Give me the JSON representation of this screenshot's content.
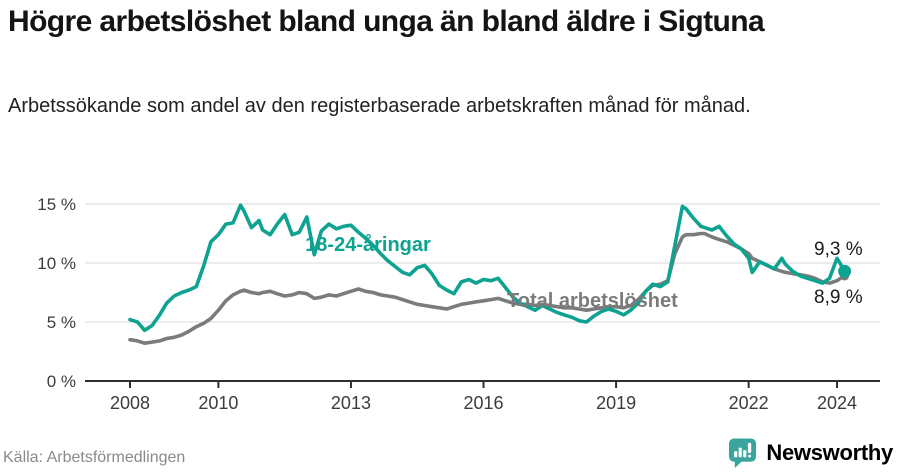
{
  "header": {
    "title": "Högre arbetslöshet bland unga än bland äldre i Sigtuna",
    "subtitle": "Arbetssökande som andel av den registerbaserade arbetskraften månad för månad."
  },
  "chart_data": {
    "type": "line",
    "title": "Högre arbetslöshet bland unga än bland äldre i Sigtuna",
    "subtitle": "Arbetssökande som andel av den registerbaserade arbetskraften månad för månad.",
    "grid": "horizontal",
    "grid_color": "#d9d9d9",
    "axis_color": "#2e2e2e",
    "tick_label_color": "#3c3c3c",
    "end_label_color": "#1a1a1a",
    "legend_position": "inline-labels",
    "xlim": [
      2006.98,
      2025.05
    ],
    "ylim": [
      0,
      16.6
    ],
    "y_ticks": [
      {
        "value": 0,
        "label": "0 %"
      },
      {
        "value": 5,
        "label": "5 %"
      },
      {
        "value": 10,
        "label": "10 %"
      },
      {
        "value": 15,
        "label": "15 %"
      }
    ],
    "x_ticks": [
      {
        "value": 2008,
        "label": "2008"
      },
      {
        "value": 2010,
        "label": "2010"
      },
      {
        "value": 2013,
        "label": "2013"
      },
      {
        "value": 2016,
        "label": "2016"
      },
      {
        "value": 2019,
        "label": "2019"
      },
      {
        "value": 2022,
        "label": "2022"
      },
      {
        "value": 2024,
        "label": "2024"
      }
    ],
    "x": [
      2008,
      2008.17,
      2008.33,
      2008.5,
      2008.67,
      2008.83,
      2009,
      2009.17,
      2009.33,
      2009.5,
      2009.67,
      2009.83,
      2010,
      2010.17,
      2010.33,
      2010.5,
      2010.58,
      2010.75,
      2010.92,
      2011,
      2011.17,
      2011.33,
      2011.5,
      2011.67,
      2011.83,
      2012,
      2012.17,
      2012.33,
      2012.5,
      2012.67,
      2012.83,
      2013,
      2013.17,
      2013.33,
      2013.5,
      2013.67,
      2013.83,
      2014,
      2014.17,
      2014.33,
      2014.5,
      2014.67,
      2014.83,
      2015,
      2015.17,
      2015.33,
      2015.5,
      2015.67,
      2015.83,
      2016,
      2016.17,
      2016.33,
      2016.5,
      2016.67,
      2016.83,
      2017,
      2017.17,
      2017.33,
      2017.5,
      2017.67,
      2017.83,
      2018,
      2018.17,
      2018.33,
      2018.5,
      2018.67,
      2018.83,
      2019,
      2019.17,
      2019.33,
      2019.5,
      2019.67,
      2019.83,
      2020,
      2020.17,
      2020.33,
      2020.5,
      2020.58,
      2020.75,
      2020.92,
      2021,
      2021.17,
      2021.33,
      2021.5,
      2021.67,
      2021.83,
      2022,
      2022.08,
      2022.25,
      2022.42,
      2022.58,
      2022.75,
      2022.83,
      2023,
      2023.17,
      2023.33,
      2023.5,
      2023.67,
      2023.83,
      2024,
      2024.08,
      2024.17
    ],
    "series": [
      {
        "name": "18-24-åringar",
        "color": "#0ea291",
        "end_label": "9,3 %",
        "end_value": 9.3,
        "values": [
          5.2,
          5.0,
          4.3,
          4.7,
          5.6,
          6.6,
          7.2,
          7.5,
          7.7,
          8.0,
          9.8,
          11.8,
          12.4,
          13.3,
          13.4,
          14.9,
          14.4,
          13.0,
          13.6,
          12.8,
          12.4,
          13.3,
          14.1,
          12.4,
          12.6,
          13.9,
          10.7,
          12.7,
          13.3,
          12.9,
          13.1,
          13.2,
          12.6,
          12.1,
          11.5,
          10.8,
          10.2,
          9.7,
          9.2,
          9.0,
          9.6,
          9.8,
          9.1,
          8.1,
          7.7,
          7.4,
          8.4,
          8.6,
          8.3,
          8.6,
          8.5,
          8.7,
          7.9,
          7.1,
          6.6,
          6.3,
          6.0,
          6.4,
          6.1,
          5.8,
          5.6,
          5.4,
          5.1,
          5.0,
          5.5,
          5.9,
          6.1,
          5.9,
          5.6,
          6.0,
          6.6,
          7.6,
          8.2,
          8.0,
          8.4,
          11.5,
          14.8,
          14.6,
          13.8,
          13.1,
          13.0,
          12.8,
          13.1,
          12.3,
          11.6,
          11.2,
          10.4,
          9.2,
          10.1,
          9.8,
          9.5,
          10.4,
          9.9,
          9.3,
          8.9,
          8.7,
          8.5,
          8.3,
          8.7,
          10.4,
          9.9,
          9.3
        ]
      },
      {
        "name": "Total arbetslöshet",
        "color": "#7b7b7b",
        "end_label": "8,9 %",
        "end_value": 8.9,
        "values": [
          3.5,
          3.4,
          3.2,
          3.3,
          3.4,
          3.6,
          3.7,
          3.9,
          4.2,
          4.6,
          4.9,
          5.3,
          6.0,
          6.8,
          7.3,
          7.6,
          7.7,
          7.5,
          7.4,
          7.5,
          7.6,
          7.4,
          7.2,
          7.3,
          7.5,
          7.4,
          7.0,
          7.1,
          7.3,
          7.2,
          7.4,
          7.6,
          7.8,
          7.6,
          7.5,
          7.3,
          7.2,
          7.1,
          6.9,
          6.7,
          6.5,
          6.4,
          6.3,
          6.2,
          6.1,
          6.3,
          6.5,
          6.6,
          6.7,
          6.8,
          6.9,
          7.0,
          6.8,
          6.6,
          6.5,
          6.5,
          6.4,
          6.5,
          6.4,
          6.3,
          6.2,
          6.2,
          6.1,
          6.0,
          6.1,
          6.2,
          6.3,
          6.3,
          6.2,
          6.4,
          6.9,
          7.6,
          8.1,
          8.2,
          8.5,
          10.8,
          12.2,
          12.4,
          12.4,
          12.5,
          12.5,
          12.2,
          12.0,
          11.8,
          11.5,
          11.2,
          10.8,
          10.4,
          10.1,
          9.8,
          9.5,
          9.3,
          9.2,
          9.1,
          9.0,
          8.9,
          8.7,
          8.4,
          8.3,
          8.5,
          8.7,
          8.9
        ]
      }
    ]
  },
  "footer": {
    "source": "Källa: Arbetsförmedlingen",
    "brand": "Newsworthy",
    "brand_color": "#3ba59d",
    "logo_icon": "bar-chart-speech-bubble"
  }
}
